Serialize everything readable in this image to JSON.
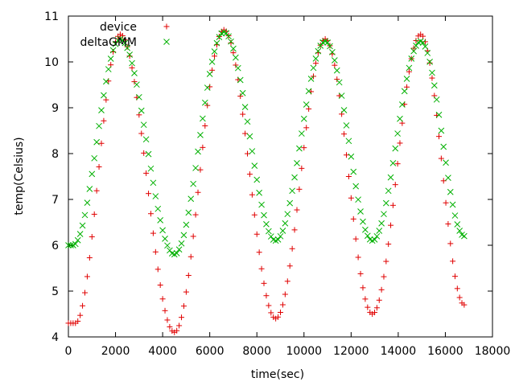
{
  "chart_data": {
    "type": "scatter",
    "xlabel": "time(sec)",
    "ylabel": "temp(Celsius)",
    "xlim": [
      0,
      18000
    ],
    "ylim": [
      4,
      11
    ],
    "xticks": [
      "0",
      "2000",
      "4000",
      "6000",
      "8000",
      "10000",
      "12000",
      "14000",
      "16000",
      "18000"
    ],
    "yticks": [
      "4",
      "5",
      "6",
      "7",
      "8",
      "9",
      "10",
      "11"
    ],
    "grid": false,
    "legend_position": "top-left",
    "series": [
      {
        "name": "device",
        "marker": "plus",
        "color": "#e00000",
        "anchors": [
          [
            0,
            4.3
          ],
          [
            300,
            4.3
          ],
          [
            2200,
            10.6
          ],
          [
            4500,
            4.1
          ],
          [
            6600,
            10.7
          ],
          [
            8800,
            4.4
          ],
          [
            10900,
            10.5
          ],
          [
            12900,
            4.5
          ],
          [
            14950,
            10.6
          ],
          [
            16800,
            4.7
          ]
        ],
        "step": 100
      },
      {
        "name": "deltaGMM",
        "marker": "cross",
        "color": "#00b000",
        "anchors": [
          [
            0,
            6.0
          ],
          [
            200,
            6.0
          ],
          [
            2200,
            10.5
          ],
          [
            4500,
            5.8
          ],
          [
            6600,
            10.65
          ],
          [
            8800,
            6.1
          ],
          [
            10900,
            10.45
          ],
          [
            12900,
            6.1
          ],
          [
            14950,
            10.45
          ],
          [
            16800,
            6.2
          ]
        ],
        "step": 100
      }
    ]
  }
}
